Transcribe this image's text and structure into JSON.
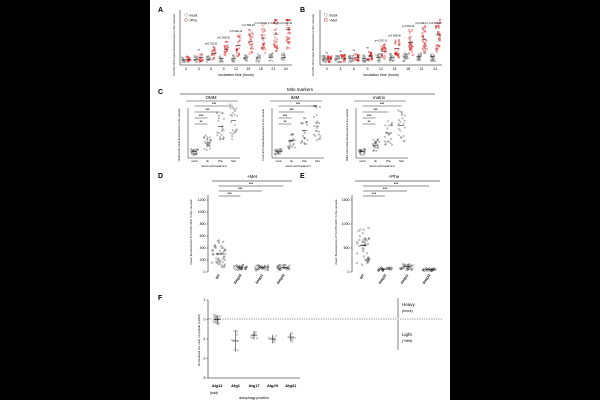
{
  "figure": {
    "panels": {
      "A": {
        "label": "A",
        "ylabel": "Tom70-mCh mean fluorescence in the vacuole",
        "xlabel": "incubation time (hours)",
        "legend": [
          "mock",
          "+Phe"
        ],
        "x_ticks": [
          "0",
          "3",
          "6",
          "9",
          "12",
          "15",
          "18",
          "21",
          "24"
        ],
        "pvals": [
          "ns",
          "p=0.738,20",
          "p=1.09E-05",
          "p=5.00E-10",
          "p=1.56E-15",
          "p=1.67E-24",
          "p=4.8E-25",
          "p=2.29E-30"
        ],
        "chart_data": {
          "type": "scatter",
          "categories": [
            "0",
            "3",
            "6",
            "9",
            "12",
            "15",
            "18",
            "21",
            "24"
          ],
          "series": [
            {
              "name": "mock",
              "values": [
                8,
                9,
                9,
                10,
                10,
                11,
                11,
                12,
                12
              ]
            },
            {
              "name": "+Phe",
              "values": [
                9,
                12,
                18,
                24,
                30,
                36,
                42,
                48,
                55
              ]
            }
          ]
        }
      },
      "B": {
        "label": "B",
        "ylabel": "Tom70-mCh mean fluorescence in the vacuole",
        "xlabel": "incubation time (hours)",
        "legend": [
          "mock",
          "+Met"
        ],
        "x_ticks": [
          "0",
          "3",
          "6",
          "9",
          "12",
          "15",
          "18",
          "21",
          "24"
        ],
        "pvals": [
          "ns",
          "ns",
          "ns",
          "ns",
          "p=1.97E-10",
          "p=2.09E-08",
          "p=1.67E-28",
          "p=2.00E-13",
          "p=6.90E-18"
        ],
        "chart_data": {
          "type": "scatter",
          "categories": [
            "0",
            "3",
            "6",
            "9",
            "12",
            "15",
            "18",
            "21",
            "24"
          ],
          "series": [
            {
              "name": "mock",
              "values": [
                8,
                8,
                9,
                9,
                10,
                10,
                11,
                11,
                11
              ]
            },
            {
              "name": "+Met",
              "values": [
                8,
                9,
                10,
                12,
                18,
                22,
                30,
                34,
                40
              ]
            }
          ]
        }
      },
      "C": {
        "label": "C",
        "super_title": "Mito markers",
        "subpanels": [
          {
            "title": "OMM",
            "ylabel": "Om45-mCh mean fluorescence in the vacuole",
            "values": [
              5,
              12,
              25,
              30
            ]
          },
          {
            "title": "IMM",
            "ylabel": "Cox4-mCh mean fluorescence in the vacuole",
            "values": [
              5,
              14,
              22,
              28
            ]
          },
          {
            "title": "matrix",
            "ylabel": "Mdh1-mCh mean fluorescence in the vacuole",
            "values": [
              5,
              10,
              20,
              26
            ]
          }
        ],
        "x_ticks": [
          "mock",
          "Ile",
          "Phe",
          "Met"
        ],
        "xlabel": "amino acid treatment",
        "sig": [
          "***",
          "***",
          "***",
          "**"
        ]
      },
      "D": {
        "label": "D",
        "title": "+Met",
        "ylabel": "mean fluorescence of Tom70-mCh in the vacuole",
        "y_ticks": [
          "0",
          "200",
          "400",
          "600",
          "800",
          "1000",
          "1200"
        ],
        "x_ticks": [
          "WT",
          "Δatg32",
          "Δatg11",
          "Δatg32"
        ],
        "sig": [
          "***",
          "***",
          "***"
        ],
        "chart_data": {
          "type": "scatter",
          "categories": [
            "WT",
            "Δatg32",
            "Δatg11",
            "Δatg32"
          ],
          "values": [
            300,
            80,
            70,
            75
          ],
          "ylim": [
            0,
            1200
          ]
        }
      },
      "E": {
        "label": "E",
        "title": "+Phe",
        "ylabel": "mean fluorescence of Tom70-mCh in the vacuole",
        "y_ticks": [
          "0",
          "500",
          "1000",
          "1500"
        ],
        "x_ticks": [
          "WT",
          "Δatg32",
          "Δatg11",
          "Δatg32"
        ],
        "sig": [
          "***",
          "***",
          "***"
        ],
        "chart_data": {
          "type": "scatter",
          "categories": [
            "WT",
            "Δatg32",
            "Δatg11",
            "Δatg32"
          ],
          "values": [
            550,
            60,
            110,
            50
          ],
          "ylim": [
            0,
            1500
          ]
        }
      },
      "F": {
        "label": "F",
        "ylabel": "Normalized H/L ratio of peptide (LOG2)",
        "xlabel": "autophagy proteins",
        "y_ticks": [
          "1",
          "0",
          "-1",
          "-2",
          "-3"
        ],
        "x_ticks": [
          "Atg11",
          "Atg1",
          "Atg17",
          "Atg29",
          "Atg31"
        ],
        "x_sub": "(bait)",
        "side_heavy": "Heavy",
        "side_heavy_sub": "(mock)",
        "side_light": "Light",
        "side_light_sub": "(+Met)",
        "chart_data": {
          "type": "scatter",
          "categories": [
            "Atg11",
            "Atg1",
            "Atg17",
            "Atg29",
            "Atg31"
          ],
          "values": [
            0.0,
            -1.1,
            -0.8,
            -1.0,
            -0.9
          ],
          "ylim": [
            -3,
            1
          ]
        }
      }
    }
  }
}
